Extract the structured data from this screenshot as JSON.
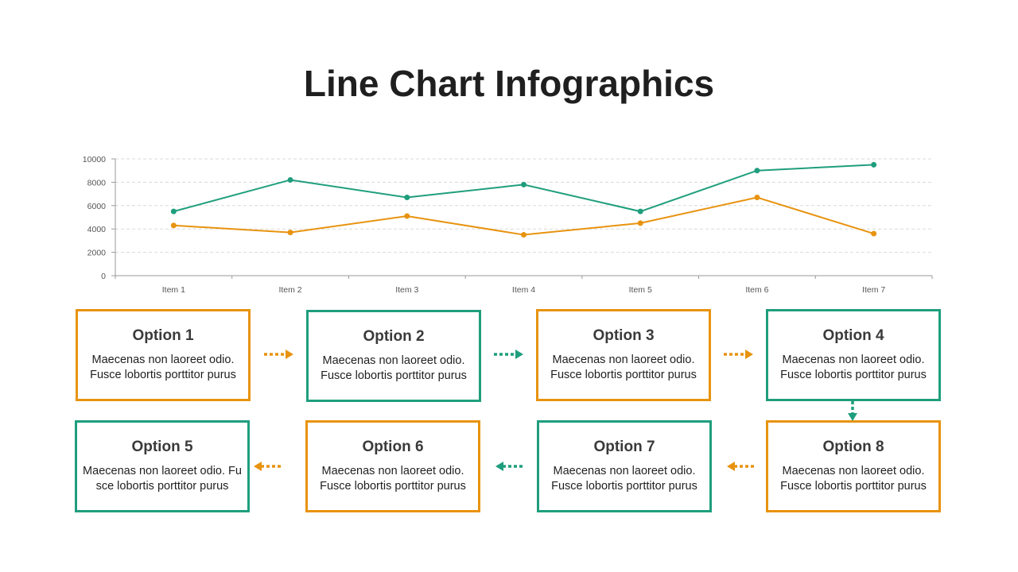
{
  "title": "Line Chart Infographics",
  "colors": {
    "teal": "#1f9e7d",
    "orange": "#e8930f"
  },
  "chart_data": {
    "type": "line",
    "title": "",
    "xlabel": "",
    "ylabel": "",
    "categories": [
      "Item 1",
      "Item 2",
      "Item 3",
      "Item 4",
      "Item 5",
      "Item 6",
      "Item 7"
    ],
    "ylim": [
      0,
      10000
    ],
    "yticks": [
      "0",
      "2000",
      "4000",
      "6000",
      "8000",
      "10000"
    ],
    "grid": true,
    "legend": "none",
    "series": [
      {
        "color": "#1f9e7d",
        "values": [
          5500,
          8200,
          6700,
          7800,
          5500,
          9000,
          9500
        ]
      },
      {
        "color": "#e8930f",
        "values": [
          4300,
          3700,
          5100,
          3500,
          4500,
          6700,
          3600
        ]
      }
    ]
  },
  "options": [
    {
      "title": "Option 1",
      "desc": "Maecenas non laoreet odio. Fusce lobortis porttitor purus",
      "color": "orange"
    },
    {
      "title": "Option 2",
      "desc": "Maecenas non laoreet odio. Fusce lobortis porttitor purus",
      "color": "teal"
    },
    {
      "title": "Option 3",
      "desc": "Maecenas non laoreet odio. Fusce lobortis porttitor purus",
      "color": "orange"
    },
    {
      "title": "Option 4",
      "desc": "Maecenas non laoreet odio. Fusce lobortis porttitor purus",
      "color": "teal"
    },
    {
      "title": "Option 5",
      "desc": "Maecenas non laoreet odio. Fu sce lobortis porttitor purus",
      "color": "teal"
    },
    {
      "title": "Option 6",
      "desc": "Maecenas non laoreet odio. Fusce lobortis porttitor purus",
      "color": "orange"
    },
    {
      "title": "Option 7",
      "desc": "Maecenas non laoreet odio. Fusce lobortis porttitor purus",
      "color": "teal"
    },
    {
      "title": "Option 8",
      "desc": "Maecenas non laoreet odio. Fusce lobortis porttitor purus",
      "color": "orange"
    }
  ]
}
